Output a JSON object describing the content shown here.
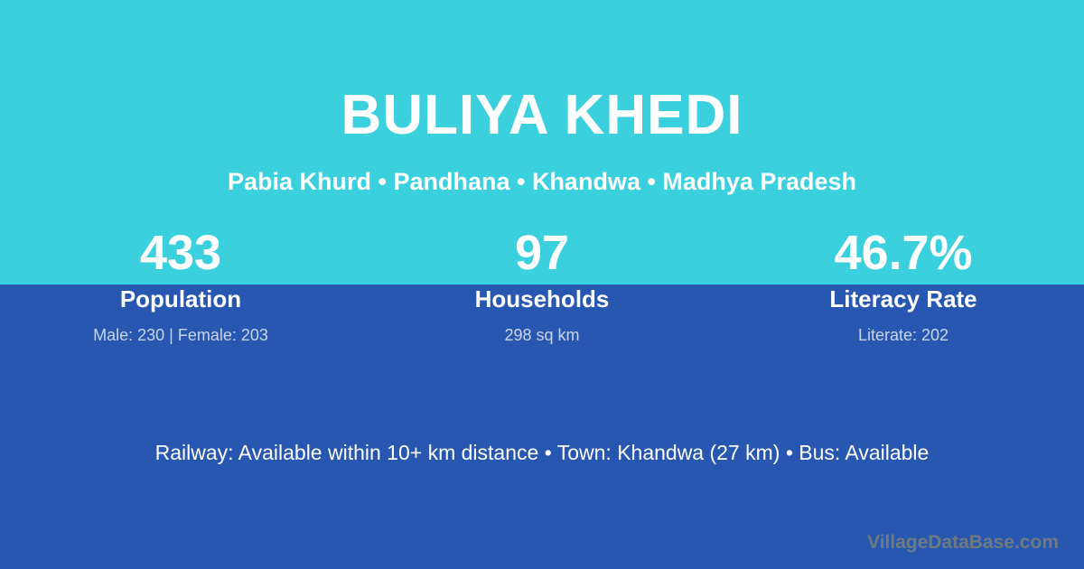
{
  "theme": {
    "top_bg": "#3ad0de",
    "bottom_bg": "#2757b0",
    "text_primary": "#ffffff",
    "text_muted": "rgba(255,255,255,0.75)",
    "watermark_color": "#6f7a80"
  },
  "header": {
    "title": "BULIYA KHEDI",
    "subtitle": "Pabia Khurd • Pandhana • Khandwa • Madhya Pradesh"
  },
  "stats": [
    {
      "value": "433",
      "label": "Population",
      "detail": "Male: 230 | Female: 203"
    },
    {
      "value": "97",
      "label": "Households",
      "detail": "298 sq km"
    },
    {
      "value": "46.7%",
      "label": "Literacy Rate",
      "detail": "Literate: 202"
    }
  ],
  "footer": {
    "info": "Railway: Available within 10+ km distance  •  Town: Khandwa (27 km)  •  Bus: Available",
    "watermark": "VillageDataBase.com"
  }
}
